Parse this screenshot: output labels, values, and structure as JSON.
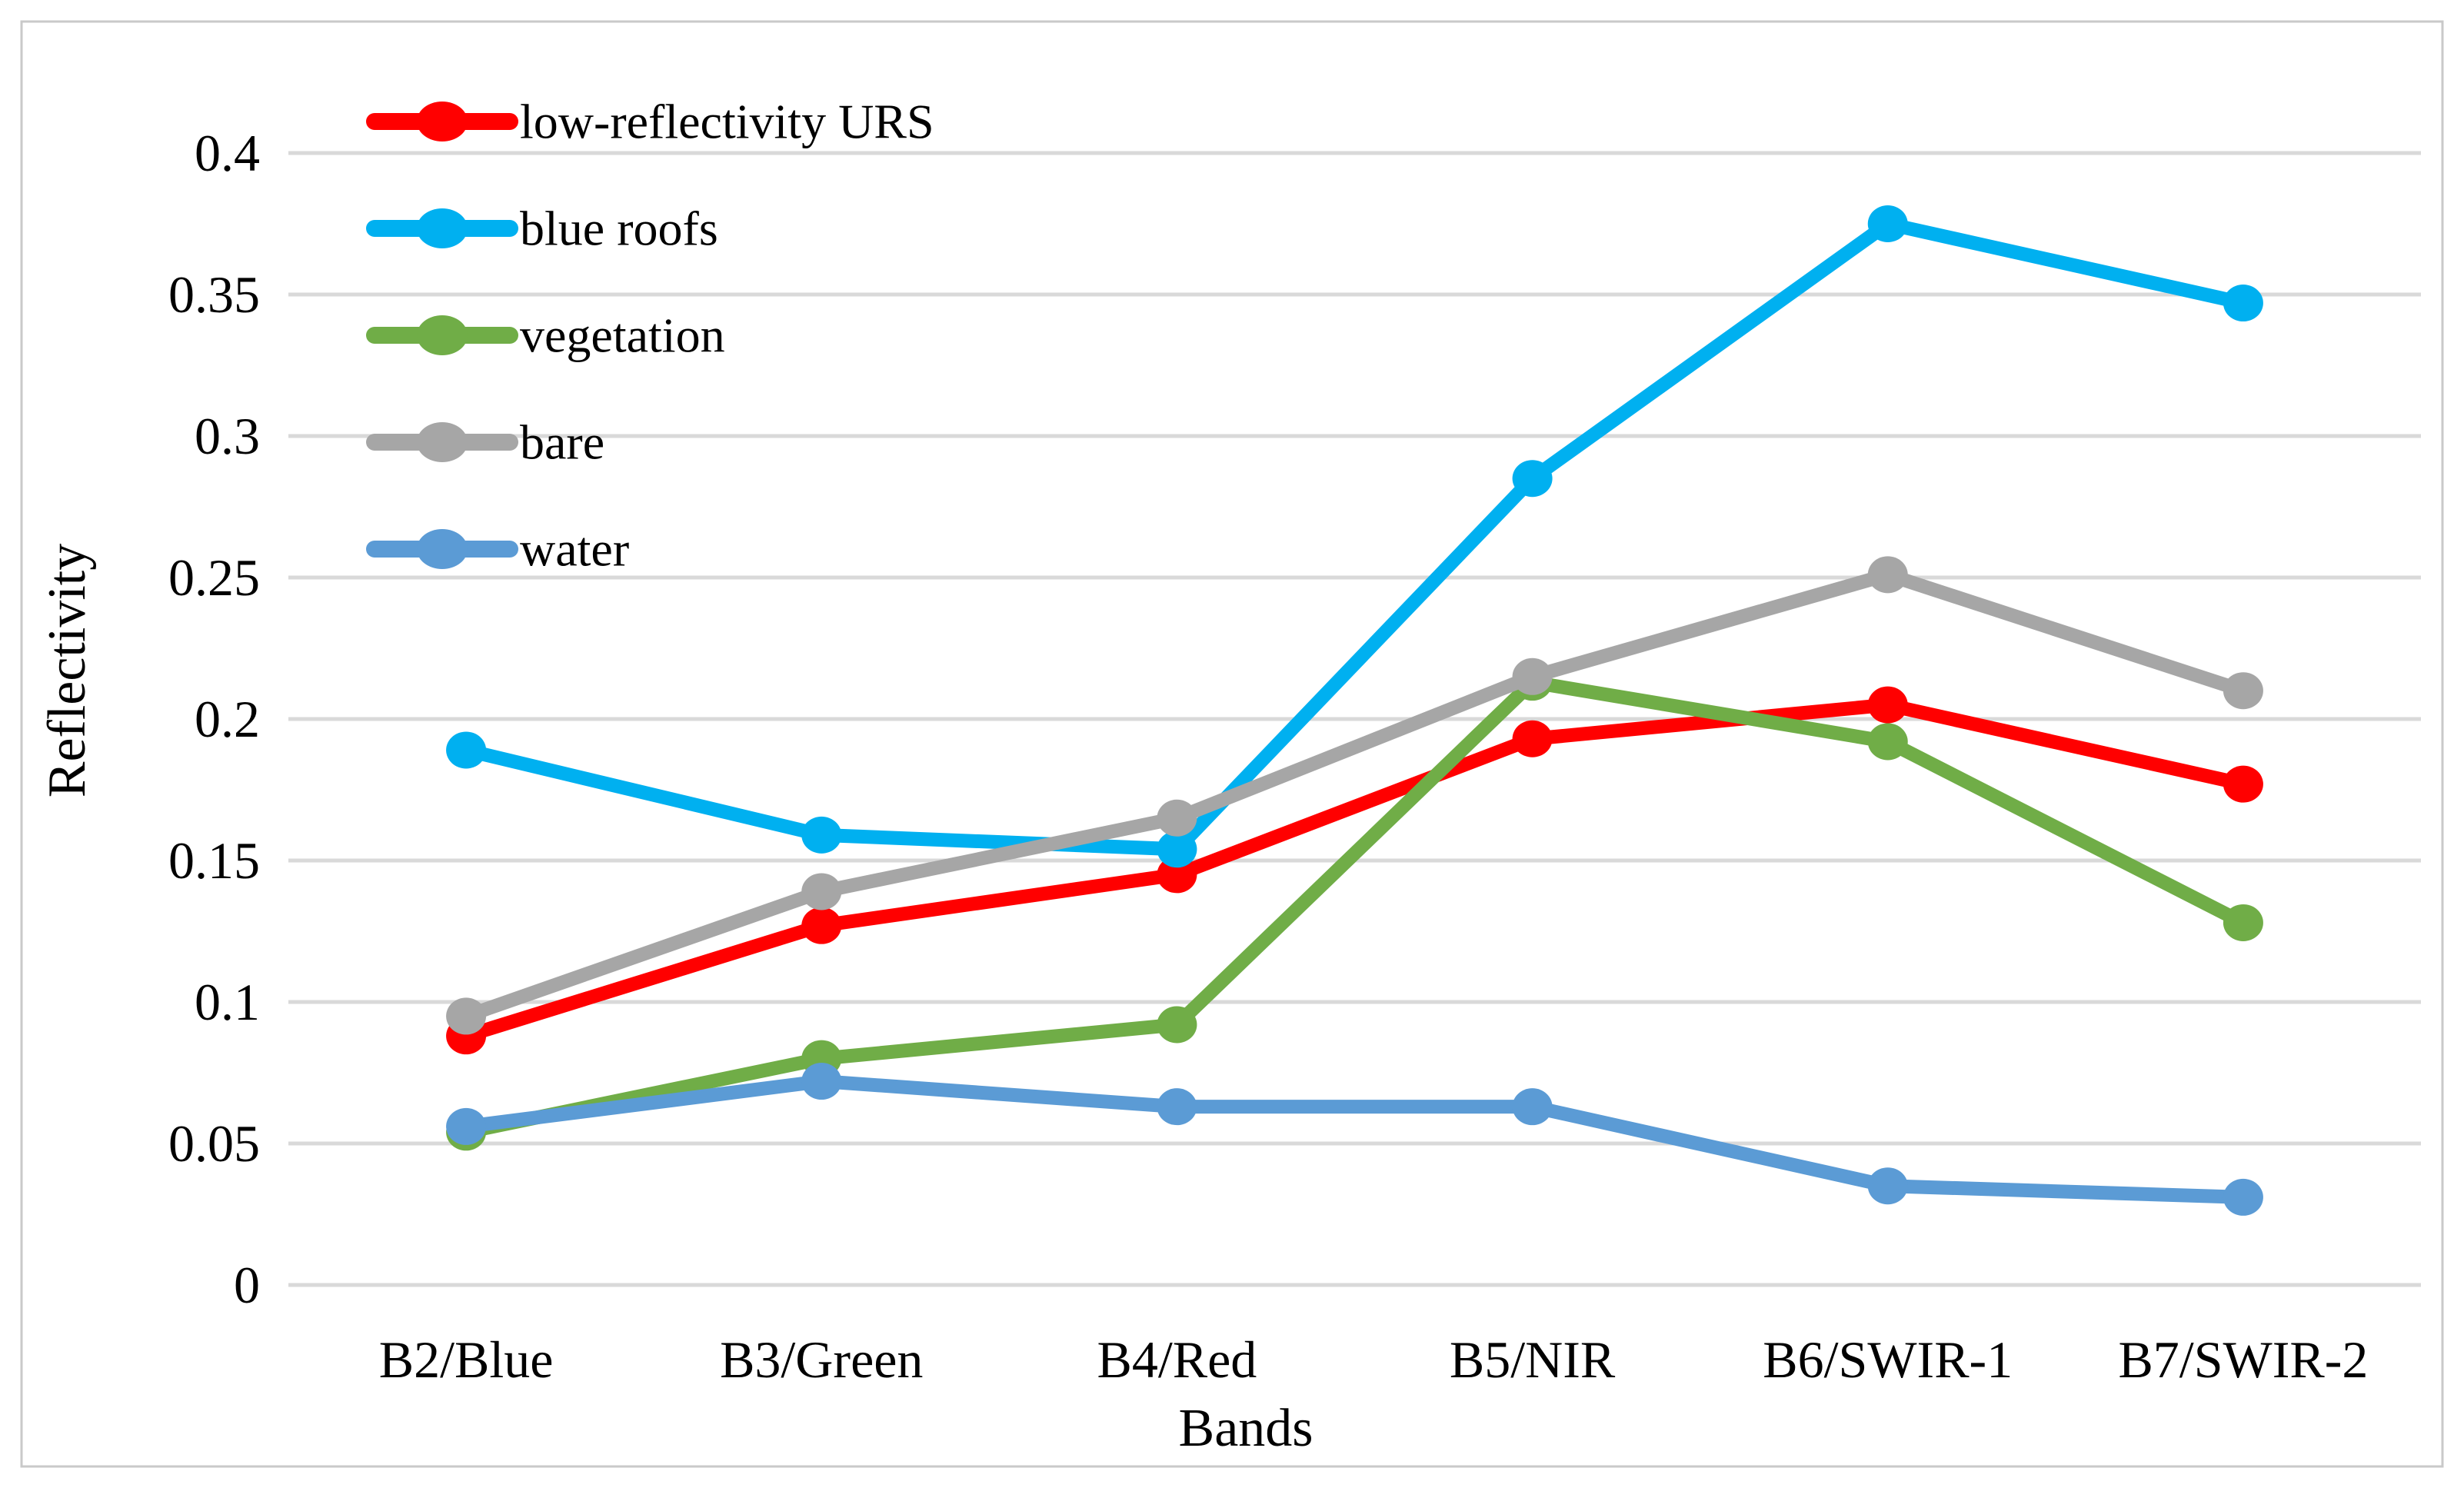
{
  "figure": {
    "background": "#FFFFFF",
    "border_color": "#C9C9C9",
    "gridline_color": "#D9D9D9",
    "text_color": "#000000"
  },
  "chart_data": {
    "type": "line",
    "title": "",
    "xlabel": "Bands",
    "ylabel": "Reflectivity",
    "categories": [
      "B2/Blue",
      "B3/Green",
      "B4/Red",
      "B5/NIR",
      "B6/SWIR-1",
      "B7/SWIR-2"
    ],
    "y_tick_labels": [
      "0",
      "0.05",
      "0.1",
      "0.15",
      "0.2",
      "0.25",
      "0.3",
      "0.35",
      "0.4"
    ],
    "y_tick_values": [
      0,
      0.05,
      0.1,
      0.15,
      0.2,
      0.25,
      0.3,
      0.35,
      0.4
    ],
    "ylim": [
      0,
      0.425
    ],
    "grid": "horizontal",
    "marker": "circle",
    "legend_position": "top-left-inside",
    "series": [
      {
        "name": "low-reflectivity URS",
        "color": "#FF0000",
        "values": [
          0.088,
          0.127,
          0.145,
          0.193,
          0.205,
          0.177
        ]
      },
      {
        "name": "blue roofs",
        "color": "#00B0F0",
        "values": [
          0.189,
          0.159,
          0.154,
          0.285,
          0.375,
          0.347
        ]
      },
      {
        "name": "vegetation",
        "color": "#70AD47",
        "values": [
          0.054,
          0.08,
          0.092,
          0.213,
          0.192,
          0.128
        ]
      },
      {
        "name": "bare",
        "color": "#A6A6A6",
        "values": [
          0.095,
          0.139,
          0.165,
          0.215,
          0.251,
          0.21
        ]
      },
      {
        "name": "water",
        "color": "#5B9BD5",
        "values": [
          0.056,
          0.072,
          0.063,
          0.063,
          0.035,
          0.031
        ]
      }
    ]
  }
}
